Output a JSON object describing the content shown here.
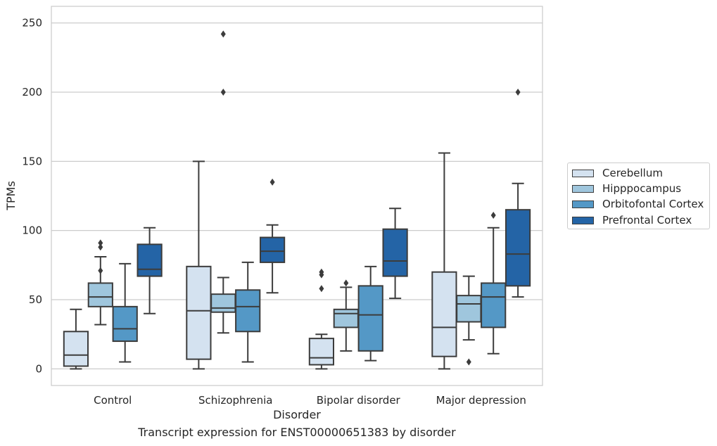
{
  "chart_data": {
    "type": "boxplot",
    "title": "Transcript expression for ENST00000651383 by disorder",
    "xlabel": "Disorder",
    "ylabel": "TPMs",
    "ylim": [
      -12,
      262
    ],
    "yticks": [
      0,
      50,
      100,
      150,
      200,
      250
    ],
    "grid": true,
    "legend_position": "right",
    "categories": [
      "Control",
      "Schizophrenia",
      "Bipolar disorder",
      "Major depression"
    ],
    "series": [
      {
        "name": "Cerebellum",
        "color": "#d4e2f0",
        "boxes": [
          {
            "whislo": 0,
            "q1": 2,
            "med": 10,
            "q3": 27,
            "whishi": 43,
            "fliers": []
          },
          {
            "whislo": 0,
            "q1": 7,
            "med": 42,
            "q3": 74,
            "whishi": 150,
            "fliers": []
          },
          {
            "whislo": 0,
            "q1": 3,
            "med": 8,
            "q3": 22,
            "whishi": 25,
            "fliers": [
              58,
              68,
              70
            ]
          },
          {
            "whislo": 0,
            "q1": 9,
            "med": 30,
            "q3": 70,
            "whishi": 156,
            "fliers": []
          }
        ]
      },
      {
        "name": "Hipppocampus",
        "color": "#9fc6dd",
        "boxes": [
          {
            "whislo": 32,
            "q1": 45,
            "med": 52,
            "q3": 62,
            "whishi": 81,
            "fliers": [
              71,
              88,
              91
            ]
          },
          {
            "whislo": 26,
            "q1": 41,
            "med": 44,
            "q3": 54,
            "whishi": 66,
            "fliers": [
              200,
              242
            ]
          },
          {
            "whislo": 13,
            "q1": 30,
            "med": 40,
            "q3": 43,
            "whishi": 59,
            "fliers": [
              62
            ]
          },
          {
            "whislo": 21,
            "q1": 34,
            "med": 47,
            "q3": 53,
            "whishi": 67,
            "fliers": [
              5
            ]
          }
        ]
      },
      {
        "name": "Orbitofontal Cortex",
        "color": "#5498c6",
        "boxes": [
          {
            "whislo": 5,
            "q1": 20,
            "med": 29,
            "q3": 45,
            "whishi": 76,
            "fliers": []
          },
          {
            "whislo": 5,
            "q1": 27,
            "med": 45,
            "q3": 57,
            "whishi": 77,
            "fliers": []
          },
          {
            "whislo": 6,
            "q1": 13,
            "med": 39,
            "q3": 60,
            "whishi": 74,
            "fliers": []
          },
          {
            "whislo": 11,
            "q1": 30,
            "med": 52,
            "q3": 62,
            "whishi": 102,
            "fliers": [
              111
            ]
          }
        ]
      },
      {
        "name": "Prefrontal Cortex",
        "color": "#2464a6",
        "boxes": [
          {
            "whislo": 40,
            "q1": 67,
            "med": 72,
            "q3": 90,
            "whishi": 102,
            "fliers": []
          },
          {
            "whislo": 55,
            "q1": 77,
            "med": 85,
            "q3": 95,
            "whishi": 104,
            "fliers": [
              135
            ]
          },
          {
            "whislo": 51,
            "q1": 67,
            "med": 78,
            "q3": 101,
            "whishi": 116,
            "fliers": []
          },
          {
            "whislo": 52,
            "q1": 60,
            "med": 83,
            "q3": 115,
            "whishi": 134,
            "fliers": [
              200
            ]
          }
        ]
      }
    ]
  }
}
